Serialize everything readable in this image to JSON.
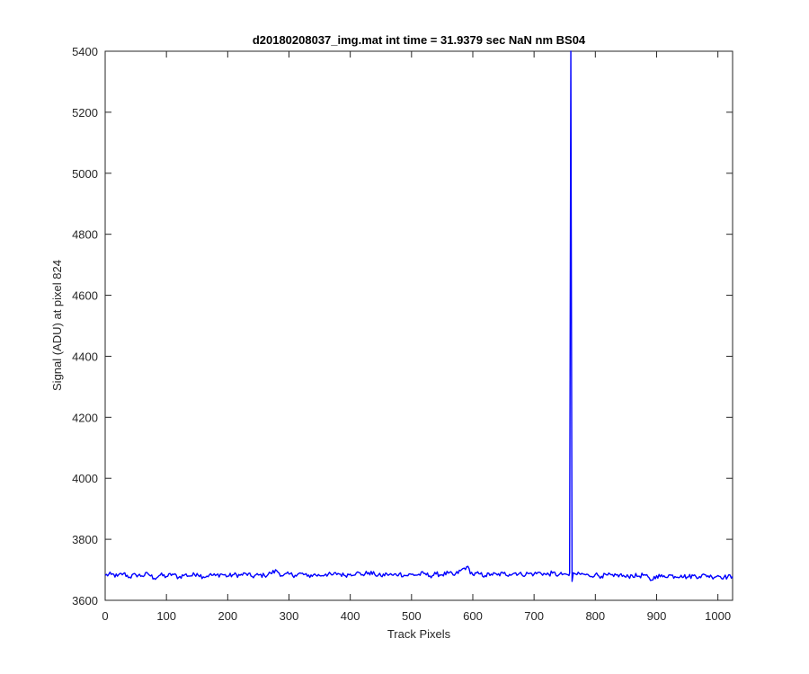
{
  "chart_data": {
    "type": "line",
    "title": "d20180208037_img.mat int time = 31.9379 sec  NaN nm BS04",
    "xlabel": "Track Pixels",
    "ylabel": "Signal (ADU) at pixel 824",
    "xlim": [
      0,
      1024
    ],
    "ylim": [
      3600,
      5400
    ],
    "xticks": [
      0,
      100,
      200,
      300,
      400,
      500,
      600,
      700,
      800,
      900,
      1000
    ],
    "yticks": [
      3600,
      3800,
      4000,
      4200,
      4400,
      4600,
      4800,
      5000,
      5200,
      5400
    ],
    "grid": false,
    "legend": "none",
    "series": [
      {
        "color": "#0000ff",
        "baseline": 3683,
        "noise_amplitude": 8,
        "spike": {
          "x": 760,
          "y": 5400
        },
        "points": [
          [
            0,
            3682
          ],
          [
            10,
            3685
          ],
          [
            20,
            3679
          ],
          [
            30,
            3688
          ],
          [
            40,
            3676
          ],
          [
            50,
            3684
          ],
          [
            60,
            3680
          ],
          [
            70,
            3687
          ],
          [
            80,
            3672
          ],
          [
            90,
            3683
          ],
          [
            100,
            3678
          ],
          [
            110,
            3686
          ],
          [
            120,
            3675
          ],
          [
            130,
            3684
          ],
          [
            140,
            3680
          ],
          [
            150,
            3688
          ],
          [
            160,
            3677
          ],
          [
            170,
            3683
          ],
          [
            180,
            3681
          ],
          [
            190,
            3686
          ],
          [
            200,
            3679
          ],
          [
            210,
            3684
          ],
          [
            220,
            3682
          ],
          [
            230,
            3687
          ],
          [
            240,
            3678
          ],
          [
            250,
            3683
          ],
          [
            260,
            3681
          ],
          [
            270,
            3689
          ],
          [
            280,
            3697
          ],
          [
            290,
            3680
          ],
          [
            300,
            3686
          ],
          [
            310,
            3682
          ],
          [
            320,
            3688
          ],
          [
            330,
            3679
          ],
          [
            340,
            3684
          ],
          [
            350,
            3681
          ],
          [
            360,
            3686
          ],
          [
            370,
            3683
          ],
          [
            380,
            3688
          ],
          [
            390,
            3682
          ],
          [
            400,
            3686
          ],
          [
            410,
            3690
          ],
          [
            420,
            3684
          ],
          [
            430,
            3691
          ],
          [
            440,
            3685
          ],
          [
            450,
            3680
          ],
          [
            460,
            3686
          ],
          [
            470,
            3682
          ],
          [
            480,
            3687
          ],
          [
            490,
            3681
          ],
          [
            500,
            3685
          ],
          [
            510,
            3683
          ],
          [
            520,
            3688
          ],
          [
            530,
            3680
          ],
          [
            540,
            3686
          ],
          [
            550,
            3684
          ],
          [
            560,
            3689
          ],
          [
            570,
            3682
          ],
          [
            580,
            3697
          ],
          [
            590,
            3710
          ],
          [
            600,
            3684
          ],
          [
            610,
            3687
          ],
          [
            620,
            3681
          ],
          [
            630,
            3686
          ],
          [
            640,
            3683
          ],
          [
            650,
            3688
          ],
          [
            660,
            3685
          ],
          [
            670,
            3690
          ],
          [
            680,
            3684
          ],
          [
            690,
            3688
          ],
          [
            700,
            3686
          ],
          [
            710,
            3691
          ],
          [
            720,
            3684
          ],
          [
            730,
            3689
          ],
          [
            740,
            3683
          ],
          [
            750,
            3687
          ],
          [
            755,
            3684
          ],
          [
            757,
            3681
          ],
          [
            758,
            3690
          ],
          [
            760,
            5400
          ],
          [
            762,
            3662
          ],
          [
            764,
            3690
          ],
          [
            770,
            3684
          ],
          [
            780,
            3686
          ],
          [
            790,
            3680
          ],
          [
            800,
            3685
          ],
          [
            810,
            3679
          ],
          [
            820,
            3683
          ],
          [
            830,
            3678
          ],
          [
            840,
            3684
          ],
          [
            850,
            3676
          ],
          [
            860,
            3682
          ],
          [
            870,
            3679
          ],
          [
            880,
            3684
          ],
          [
            890,
            3665
          ],
          [
            900,
            3681
          ],
          [
            910,
            3677
          ],
          [
            920,
            3683
          ],
          [
            930,
            3678
          ],
          [
            940,
            3682
          ],
          [
            950,
            3676
          ],
          [
            960,
            3681
          ],
          [
            970,
            3678
          ],
          [
            980,
            3683
          ],
          [
            990,
            3677
          ],
          [
            1000,
            3681
          ],
          [
            1010,
            3676
          ],
          [
            1024,
            3678
          ]
        ]
      }
    ]
  }
}
